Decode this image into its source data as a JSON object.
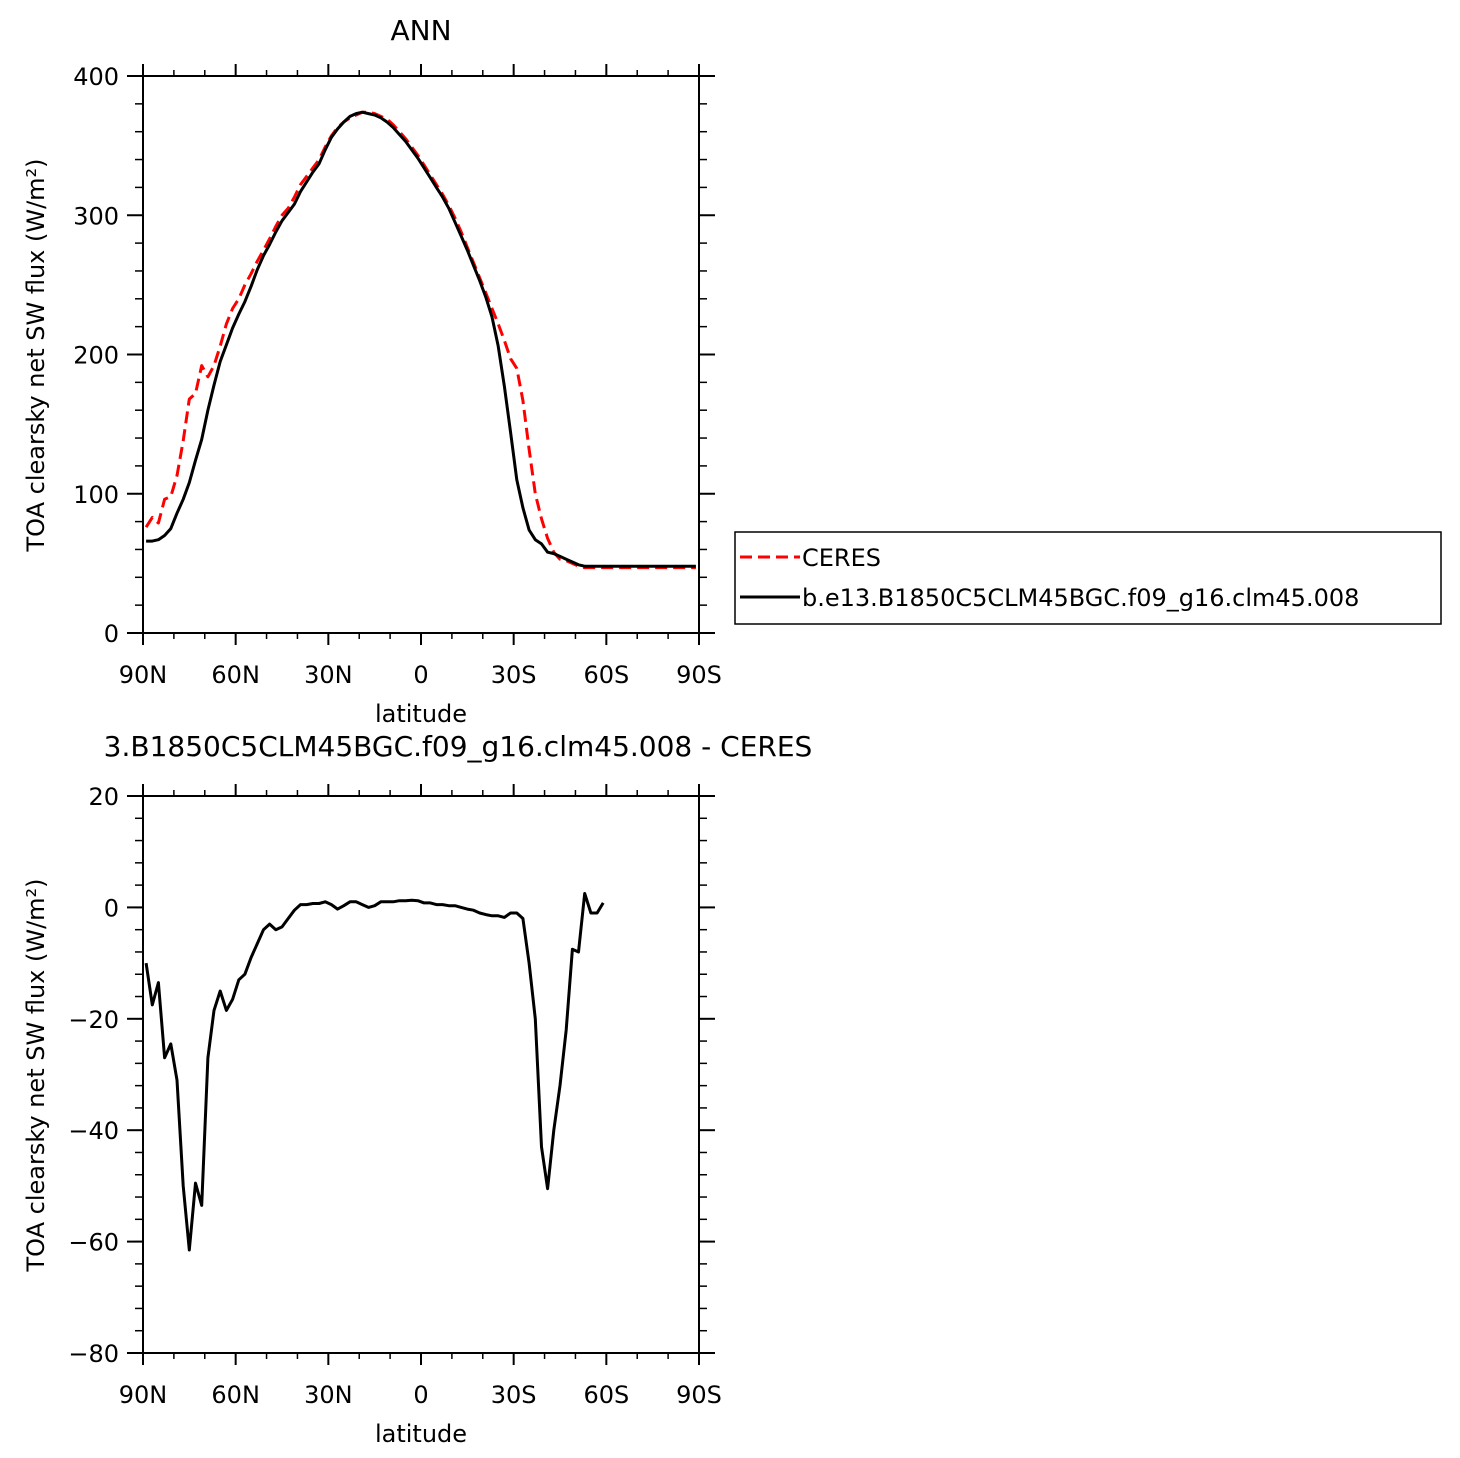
{
  "colors": {
    "ceres": "#ff0000",
    "model": "#000000",
    "axis": "#000000"
  },
  "chart_data": [
    {
      "type": "line",
      "title": "ANN",
      "xlabel": "latitude",
      "ylabel": "TOA clearsky net SW flux (W/m²)",
      "xlim": [
        90,
        -90
      ],
      "ylim": [
        0,
        400
      ],
      "xticks": [
        90,
        60,
        30,
        0,
        -30,
        -60,
        -90
      ],
      "xticklabels": [
        "90N",
        "60N",
        "30N",
        "0",
        "30S",
        "60S",
        "90S"
      ],
      "yticks": [
        0,
        100,
        200,
        300,
        400
      ],
      "yticklabels": [
        "0",
        "100",
        "200",
        "300",
        "400"
      ],
      "grid": false,
      "legend_position": "right",
      "x": [
        89,
        87,
        85,
        83,
        81,
        79,
        77,
        75,
        73,
        71,
        69,
        67,
        65,
        63,
        61,
        59,
        57,
        55,
        53,
        51,
        49,
        47,
        45,
        43,
        41,
        39,
        37,
        35,
        33,
        31,
        29,
        27,
        25,
        23,
        21,
        19,
        17,
        15,
        13,
        11,
        9,
        7,
        5,
        3,
        1,
        -1,
        -3,
        -5,
        -7,
        -9,
        -11,
        -13,
        -15,
        -17,
        -19,
        -21,
        -23,
        -25,
        -27,
        -29,
        -31,
        -33,
        -35,
        -37,
        -39,
        -41,
        -43,
        -45,
        -47,
        -49,
        -51,
        -53,
        -55,
        -57,
        -59,
        -61,
        -63,
        -65,
        -67,
        -69,
        -71,
        -73,
        -75,
        -77,
        -79,
        -81,
        -83,
        -85,
        -87,
        -89
      ],
      "series": [
        {
          "name": "CERES",
          "style": "dashed",
          "color": "#ff0000",
          "values": [
            76,
            83,
            79,
            96,
            98,
            113,
            138,
            168,
            172,
            192,
            184,
            192,
            206,
            222,
            233,
            240,
            250,
            258,
            267,
            275,
            283,
            292,
            300,
            305,
            313,
            322,
            328,
            334,
            340,
            349,
            357,
            363,
            367,
            370,
            372,
            374,
            374,
            373,
            371,
            369,
            365,
            360,
            355,
            349,
            343,
            336,
            329,
            322,
            315,
            307,
            298,
            288,
            277,
            266,
            255,
            244,
            233,
            222,
            210,
            197,
            190,
            167,
            132,
            100,
            82,
            68,
            58,
            53,
            52,
            50,
            48,
            47,
            47,
            47,
            47,
            47,
            47,
            47,
            47,
            47,
            47,
            47,
            47,
            47,
            47,
            47,
            47,
            47,
            47,
            47
          ]
        },
        {
          "name": "b.e13.B1850C5CLM45BGC.f09_g16.clm45.008",
          "style": "solid",
          "color": "#000000",
          "values": [
            66,
            66,
            67,
            70,
            75,
            86,
            96,
            108,
            124,
            139,
            160,
            178,
            195,
            207,
            219,
            229,
            238,
            249,
            261,
            271,
            279,
            288,
            296,
            302,
            308,
            317,
            324,
            331,
            337,
            347,
            356,
            362,
            367,
            371,
            373,
            374,
            373,
            372,
            370,
            367,
            363,
            358,
            353,
            347,
            341,
            334,
            327,
            320,
            313,
            305,
            295,
            285,
            275,
            264,
            253,
            241,
            227,
            206,
            177,
            144,
            110,
            90,
            74,
            67,
            64,
            58,
            57,
            55,
            53,
            51,
            49,
            48,
            48,
            48,
            48,
            48,
            48,
            48,
            48,
            48,
            48,
            48,
            48,
            48,
            48,
            48,
            48,
            48,
            48,
            48
          ]
        }
      ]
    },
    {
      "type": "line",
      "title": "3.B1850C5CLM45BGC.f09_g16.clm45.008 - CERES",
      "xlabel": "latitude",
      "ylabel": "TOA clearsky net SW flux (W/m²)",
      "xlim": [
        90,
        -90
      ],
      "ylim": [
        -80,
        20
      ],
      "xticks": [
        90,
        60,
        30,
        0,
        -30,
        -60,
        -90
      ],
      "xticklabels": [
        "90N",
        "60N",
        "30N",
        "0",
        "30S",
        "60S",
        "90S"
      ],
      "yticks": [
        20,
        0,
        -20,
        -40,
        -60,
        -80
      ],
      "yticklabels": [
        "20",
        "0",
        "−20",
        "−40",
        "−60",
        "−80"
      ],
      "grid": false,
      "series": [
        {
          "name": "",
          "style": "solid",
          "color": "#000000",
          "points": [
            [
              89,
              -10
            ],
            [
              87,
              -17.5
            ],
            [
              85,
              -13.5
            ],
            [
              83,
              -27
            ],
            [
              81,
              -24.5
            ],
            [
              79,
              -31
            ],
            [
              77,
              -50
            ],
            [
              75,
              -61.5
            ],
            [
              73,
              -49.5
            ],
            [
              71,
              -53.5
            ],
            [
              69,
              -27
            ],
            [
              67,
              -18.5
            ],
            [
              65,
              -15
            ],
            [
              63,
              -18.5
            ],
            [
              61,
              -16.5
            ],
            [
              59,
              -13
            ],
            [
              57,
              -12
            ],
            [
              55,
              -9
            ],
            [
              53,
              -6.5
            ],
            [
              51,
              -4
            ],
            [
              49,
              -3
            ],
            [
              47,
              -4
            ],
            [
              45,
              -3.5
            ],
            [
              43,
              -2
            ],
            [
              41,
              -0.5
            ],
            [
              39,
              0.5
            ],
            [
              37,
              0.5
            ],
            [
              35,
              0.7
            ],
            [
              33,
              0.7
            ],
            [
              31,
              1
            ],
            [
              29,
              0.5
            ],
            [
              27,
              -0.3
            ],
            [
              25,
              0.3
            ],
            [
              23,
              1
            ],
            [
              21,
              1
            ],
            [
              19,
              0.5
            ],
            [
              17,
              0
            ],
            [
              15,
              0.3
            ],
            [
              13,
              1
            ],
            [
              11,
              1
            ],
            [
              9,
              1
            ],
            [
              7,
              1.2
            ],
            [
              5,
              1.2
            ],
            [
              3,
              1.3
            ],
            [
              1,
              1.2
            ],
            [
              -1,
              0.8
            ],
            [
              -3,
              0.8
            ],
            [
              -5,
              0.5
            ],
            [
              -7,
              0.5
            ],
            [
              -9,
              0.3
            ],
            [
              -11,
              0.3
            ],
            [
              -13,
              0
            ],
            [
              -15,
              -0.3
            ],
            [
              -17,
              -0.5
            ],
            [
              -19,
              -1
            ],
            [
              -21,
              -1.3
            ],
            [
              -23,
              -1.5
            ],
            [
              -25,
              -1.5
            ],
            [
              -27,
              -1.8
            ],
            [
              -29,
              -1
            ],
            [
              -31,
              -1
            ],
            [
              -33,
              -2
            ],
            [
              -35,
              -10
            ],
            [
              -37,
              -20
            ],
            [
              -39,
              -43
            ],
            [
              -41,
              -50.5
            ],
            [
              -43,
              -40
            ],
            [
              -45,
              -32
            ],
            [
              -47,
              -22
            ],
            [
              -49,
              -7.5
            ],
            [
              -51,
              -8
            ],
            [
              -53,
              2.5
            ],
            [
              -55,
              -1
            ],
            [
              -57,
              -1
            ],
            [
              -59,
              0.8
            ]
          ]
        }
      ]
    }
  ]
}
